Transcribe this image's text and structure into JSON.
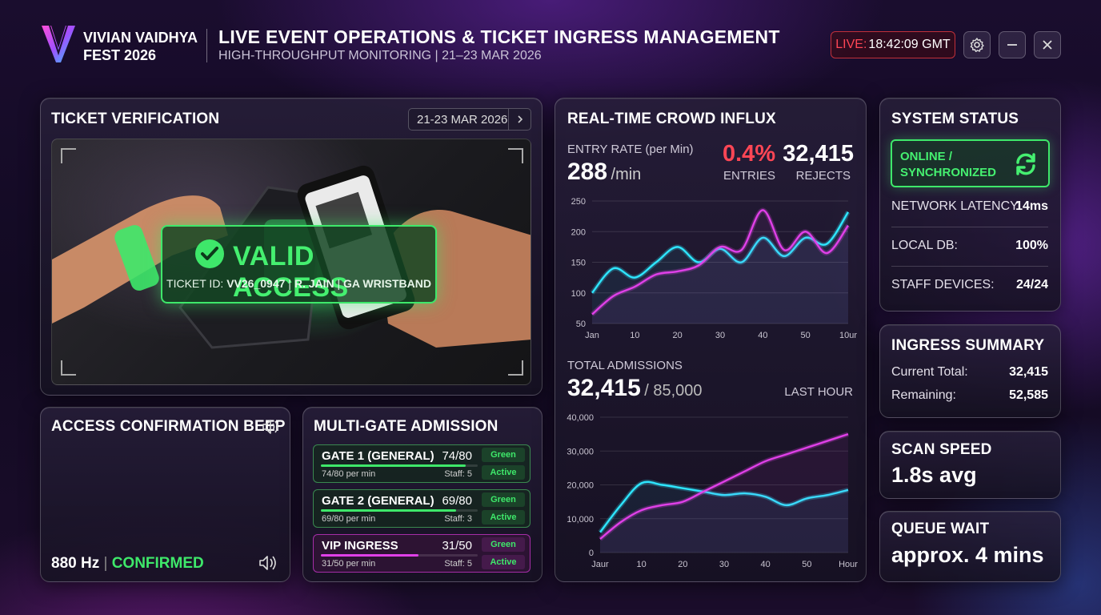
{
  "header": {
    "brand_line1": "VIVIAN VAIDHYA",
    "brand_line2": "FEST 2026",
    "title": "LIVE EVENT OPERATIONS & TICKET INGRESS MANAGEMENT",
    "subtitle": "HIGH-THROUGHPUT MONITORING | 21–23 MAR 2026",
    "live_label": "LIVE:",
    "live_time": "18:42:09 GMT",
    "icons": [
      "settings-gear-icon",
      "minimize-icon",
      "close-icon"
    ]
  },
  "ticket": {
    "title": "TICKET VERIFICATION",
    "date_range": "21-23 MAR 2026",
    "status": "VALID ACCESS",
    "ticket_prefix": "TICKET ID:",
    "ticket_id": "VV26_0947",
    "holder": "R. JAIN",
    "type": "GA WRISTBAND",
    "accent": "#3ee86a"
  },
  "beep": {
    "title": "ACCESS CONFIRMATION BEEP",
    "frequency": "880 Hz",
    "separator": "|",
    "status": "CONFIRMED"
  },
  "gates": {
    "title": "MULTI-GATE ADMISSION",
    "items": [
      {
        "name": "GATE 1 (GENERAL)",
        "count": "74/80",
        "rate": "74/80 per min",
        "staff": "Staff: 5",
        "tag1": "Green",
        "tag2": "Active",
        "fill": 0.925
      },
      {
        "name": "GATE 2 (GENERAL)",
        "count": "69/80",
        "rate": "69/80 per min",
        "staff": "Staff: 3",
        "tag1": "Green",
        "tag2": "Active",
        "fill": 0.8625
      },
      {
        "name": "VIP INGRESS",
        "count": "31/50",
        "rate": "31/50 per min",
        "staff": "Staff: 5",
        "tag1": "Green",
        "tag2": "Active",
        "fill": 0.62
      }
    ]
  },
  "influx": {
    "title": "REAL-TIME CROWD INFLUX",
    "entry_label": "ENTRY RATE (per Min)",
    "entry_value": "288",
    "entry_unit": "/min",
    "pct_value": "0.4%",
    "pct_label": "ENTRIES",
    "rejects_value": "32,415",
    "rejects_label": "REJECTS",
    "total_label": "TOTAL ADMISSIONS",
    "total_value": "32,415",
    "total_cap": "/ 85,000",
    "period": "LAST HOUR"
  },
  "system": {
    "title": "SYSTEM STATUS",
    "status_line1": "ONLINE /",
    "status_line2": "SYNCHRONIZED",
    "rows": [
      {
        "label": "NETWORK LATENCY:",
        "value": "14ms"
      },
      {
        "label": "LOCAL DB:",
        "value": "100%"
      },
      {
        "label": "STAFF DEVICES:",
        "value": "24/24"
      }
    ]
  },
  "ingress": {
    "title": "INGRESS SUMMARY",
    "current_label": "Current Total:",
    "current_value": "32,415",
    "remaining_label": "Remaining:",
    "remaining_value": "52,585"
  },
  "scan": {
    "title": "SCAN SPEED",
    "value": "1.8s avg"
  },
  "queue": {
    "title": "QUEUE WAIT",
    "value": "approx. 4 mins"
  },
  "chart_data": [
    {
      "type": "line",
      "title": "",
      "x": [
        0,
        5,
        10,
        15,
        20,
        25,
        30,
        35,
        40,
        45,
        50,
        55,
        60
      ],
      "xticks": [
        "Jan",
        "10",
        "20",
        "30",
        "40",
        "50",
        "10ur"
      ],
      "xtick_values": [
        0,
        10,
        20,
        30,
        40,
        50,
        60
      ],
      "yticks": [
        "50",
        "100",
        "150",
        "200",
        "250"
      ],
      "ylim": [
        50,
        250
      ],
      "grid": true,
      "series": [
        {
          "color": "#2ee6ff",
          "values": [
            100,
            140,
            125,
            150,
            175,
            150,
            172,
            150,
            190,
            160,
            190,
            180,
            232
          ]
        },
        {
          "color": "#e040e8",
          "values": [
            65,
            95,
            110,
            130,
            135,
            145,
            175,
            170,
            235,
            170,
            200,
            165,
            210
          ]
        }
      ]
    },
    {
      "type": "line",
      "title": "",
      "x": [
        0,
        5,
        10,
        15,
        20,
        25,
        30,
        35,
        40,
        45,
        50,
        55,
        60
      ],
      "xticks": [
        "Jaur",
        "10",
        "20",
        "30",
        "40",
        "50",
        "Hour"
      ],
      "xtick_values": [
        0,
        10,
        20,
        30,
        40,
        50,
        60
      ],
      "yticks": [
        "0",
        "10,000",
        "20,000",
        "30,000",
        "40,000"
      ],
      "ylim": [
        0,
        40000
      ],
      "grid": true,
      "series": [
        {
          "color": "#2ee6ff",
          "values": [
            6000,
            14000,
            20500,
            20000,
            19000,
            18000,
            17000,
            17500,
            16500,
            14000,
            16000,
            17000,
            18500
          ]
        },
        {
          "color": "#e040e8",
          "values": [
            4000,
            9000,
            12500,
            14000,
            15000,
            18000,
            21000,
            24000,
            27000,
            29000,
            31000,
            33000,
            35000
          ]
        }
      ]
    }
  ]
}
